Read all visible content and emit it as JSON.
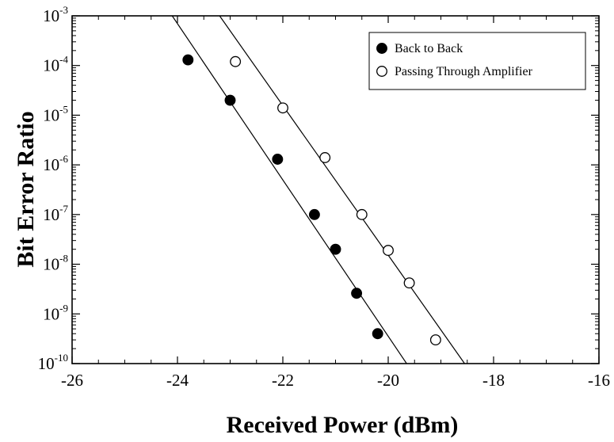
{
  "chart_data": {
    "type": "scatter",
    "xlabel": "Received Power (dBm)",
    "ylabel": "Bit Error Ratio",
    "xlim": [
      -26,
      -16
    ],
    "ylim_log10": [
      -10,
      -3
    ],
    "y_scale": "log",
    "x_ticks": [
      -26,
      -24,
      -22,
      -20,
      -18,
      -16
    ],
    "y_tick_exponents": [
      -10,
      -9,
      -8,
      -7,
      -6,
      -5,
      -4,
      -3
    ],
    "y_tick_base": "10",
    "grid": false,
    "legend_position": "top-right",
    "series": [
      {
        "name": "Back to Back",
        "marker": "filled-circle",
        "color": "#000000",
        "x": [
          -23.8,
          -23.0,
          -22.1,
          -21.4,
          -21.0,
          -20.6,
          -20.2
        ],
        "y": [
          0.00013,
          2e-05,
          1.3e-06,
          1e-07,
          2e-08,
          2.6e-09,
          4e-10
        ],
        "fit_line": {
          "x": [
            -24.1,
            -19.65
          ],
          "y": [
            0.001,
            1e-10
          ]
        }
      },
      {
        "name": "Passing Through Amplifier",
        "marker": "open-circle",
        "color": "#000000",
        "x": [
          -22.9,
          -22.0,
          -21.2,
          -20.5,
          -20.0,
          -19.6,
          -19.1
        ],
        "y": [
          0.00012,
          1.4e-05,
          1.4e-06,
          1e-07,
          1.9e-08,
          4.2e-09,
          3e-10
        ],
        "fit_line": {
          "x": [
            -23.2,
            -18.55
          ],
          "y": [
            0.001,
            1e-10
          ]
        }
      }
    ]
  }
}
